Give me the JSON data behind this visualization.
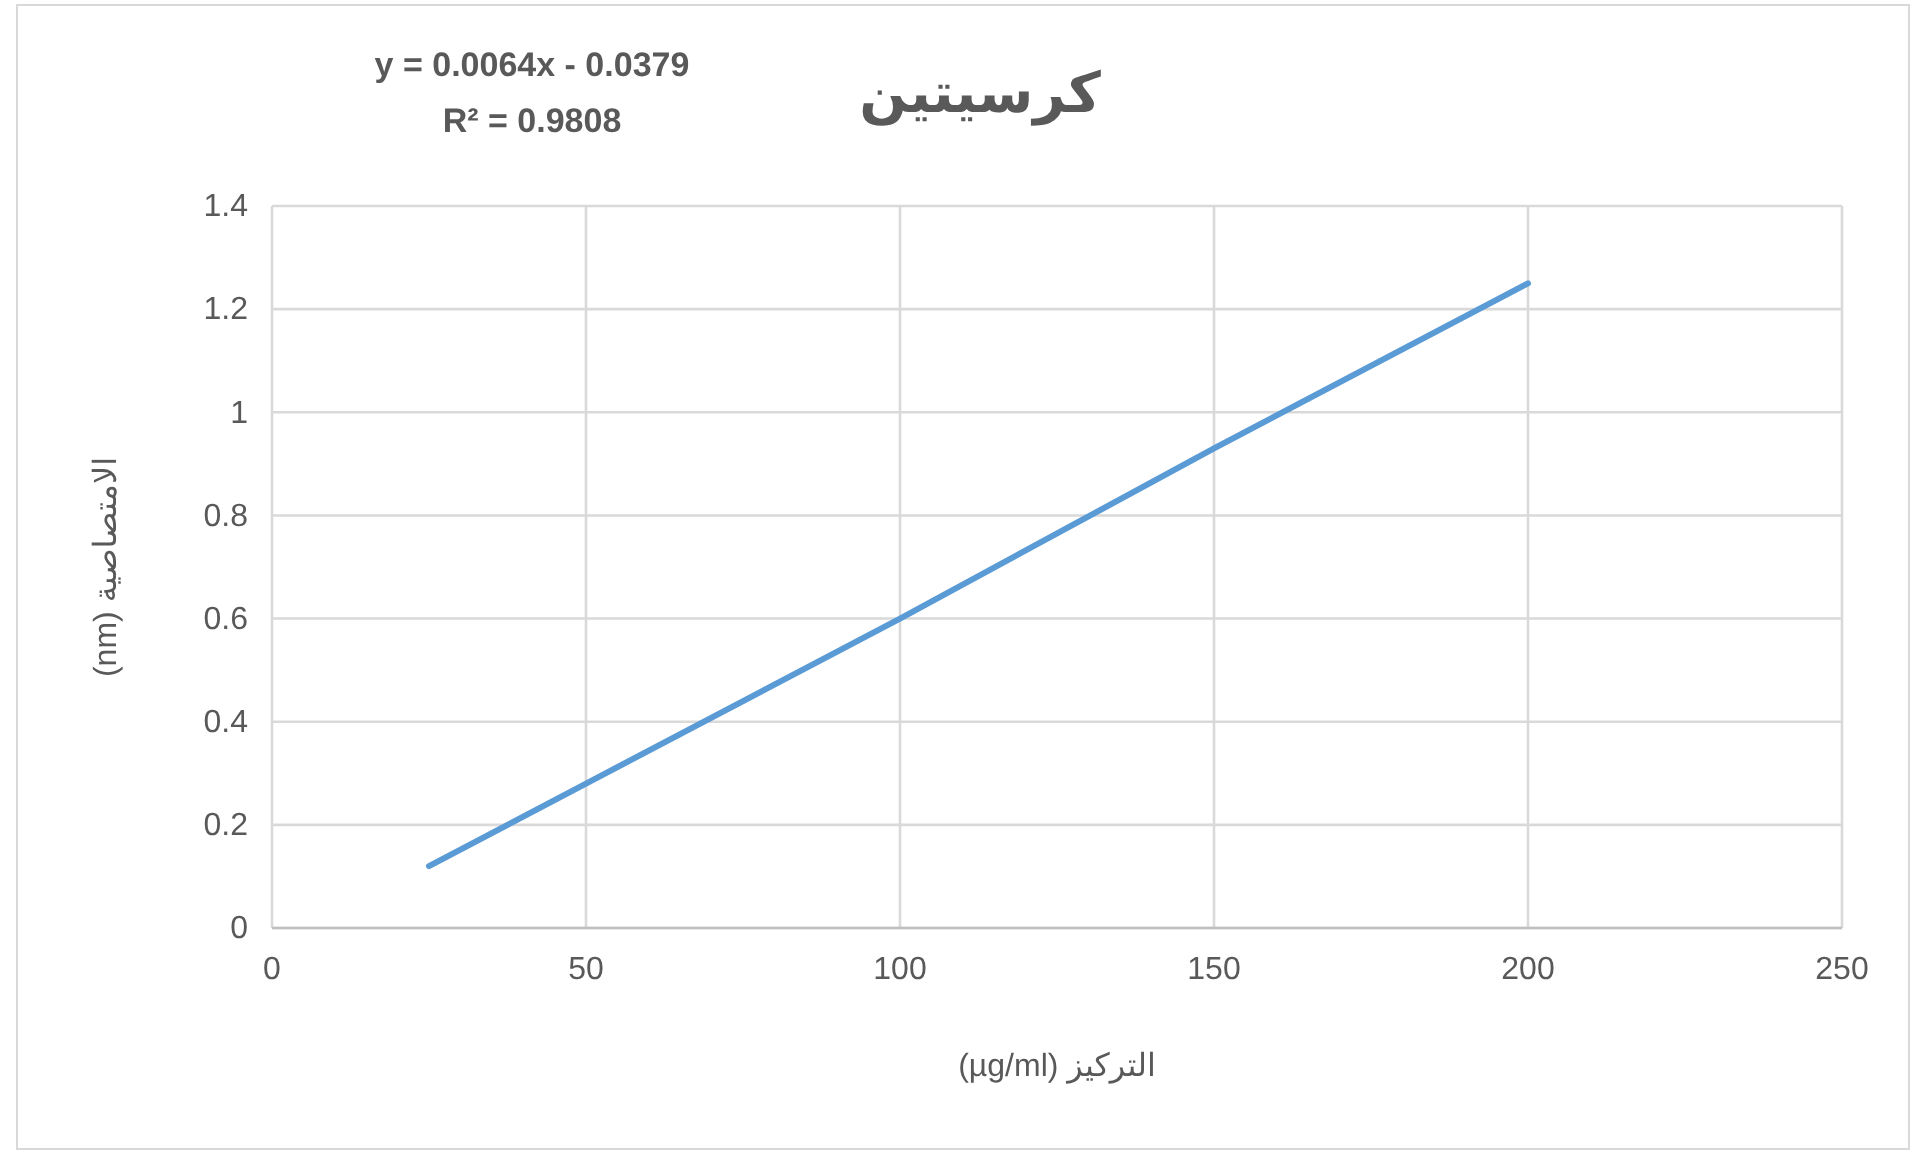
{
  "chart_data": {
    "type": "line",
    "title": "كرسيتين",
    "xlabel": "التركيز (µg/ml)",
    "ylabel": "الامتصاصية (nm)",
    "annotations": [
      "y = 0.0064x - 0.0379",
      "R² = 0.9808"
    ],
    "x": [
      25,
      50,
      100,
      150,
      200
    ],
    "series": [
      {
        "color": "#5b9bd5",
        "values": [
          0.12,
          0.28,
          0.6,
          0.93,
          1.25
        ]
      }
    ],
    "xlim": [
      0,
      250
    ],
    "xticks": [
      0,
      50,
      100,
      150,
      200,
      250
    ],
    "ylim": [
      0,
      1.4
    ],
    "yticks": [
      0,
      0.2,
      0.4,
      0.6,
      0.8,
      1,
      1.2,
      1.4
    ],
    "grid": true
  }
}
